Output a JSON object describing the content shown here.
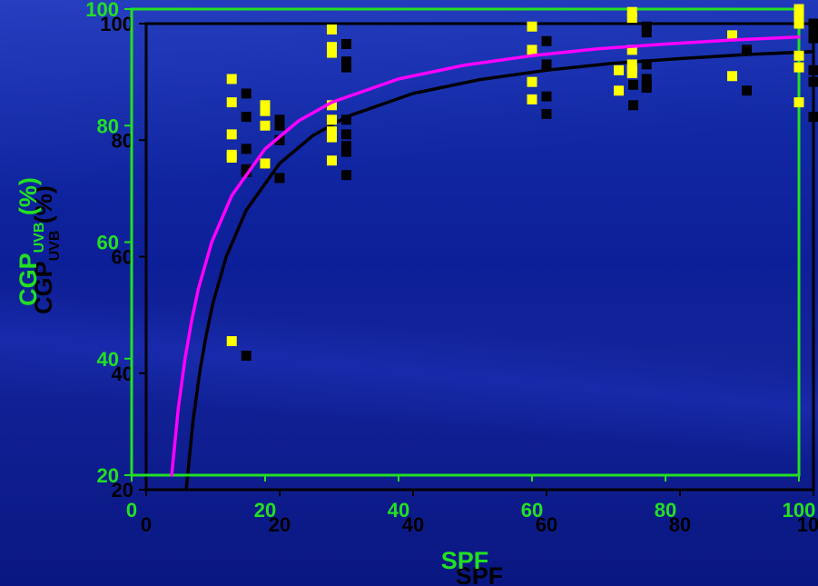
{
  "chart_data": {
    "type": "scatter",
    "xlabel": "SPF",
    "ylabel": "CGP",
    "ylabel_subscript": "UVB",
    "ylabel_suffix": " (%)",
    "xlim": [
      0,
      100
    ],
    "ylim": [
      20,
      100
    ],
    "xticks": [
      0,
      20,
      40,
      60,
      80,
      100
    ],
    "yticks": [
      20,
      40,
      60,
      80,
      100
    ],
    "xtick_labels": [
      "0",
      "20",
      "40",
      "60",
      "80",
      "100"
    ],
    "ytick_labels": [
      "20",
      "40",
      "60",
      "80",
      "100"
    ],
    "colors": {
      "frame": "#22e022",
      "axis_text": "#22e022",
      "shadow": "#000000",
      "points": "#ffff00",
      "curve": "#ff00ff"
    },
    "series": [
      {
        "marker": "square",
        "color": "#ffff00",
        "points": [
          [
            15,
            88
          ],
          [
            15,
            84
          ],
          [
            15,
            78.5
          ],
          [
            15,
            75
          ],
          [
            15,
            74.5
          ],
          [
            15,
            43
          ],
          [
            20,
            83.5
          ],
          [
            20,
            82.5
          ],
          [
            20,
            80
          ],
          [
            20,
            73.5
          ],
          [
            30,
            96.5
          ],
          [
            30,
            93.5
          ],
          [
            30,
            92.5
          ],
          [
            30,
            83.5
          ],
          [
            30,
            81
          ],
          [
            30,
            79
          ],
          [
            30,
            78
          ],
          [
            30,
            74
          ],
          [
            60,
            97
          ],
          [
            60,
            93
          ],
          [
            60,
            87.5
          ],
          [
            60,
            84.5
          ],
          [
            73,
            89.5
          ],
          [
            73,
            86
          ],
          [
            75,
            99.5
          ],
          [
            75,
            98.5
          ],
          [
            75,
            93
          ],
          [
            75,
            90.5
          ],
          [
            75,
            89.5
          ],
          [
            75,
            89
          ],
          [
            90,
            95.5
          ],
          [
            90,
            88.5
          ],
          [
            100,
            100
          ],
          [
            100,
            99
          ],
          [
            100,
            98
          ],
          [
            100,
            97.5
          ],
          [
            100,
            92
          ],
          [
            100,
            90
          ],
          [
            100,
            84
          ]
        ]
      }
    ],
    "fit_curve": {
      "color": "#ff00ff",
      "x": [
        6,
        7,
        8,
        9,
        10,
        12,
        15,
        20,
        25,
        30,
        40,
        50,
        60,
        70,
        80,
        90,
        100
      ],
      "y": [
        20,
        31.5,
        40,
        46.5,
        52,
        60,
        68,
        76,
        80.8,
        84,
        88,
        90.4,
        92,
        93.2,
        94,
        94.7,
        95.2
      ]
    }
  }
}
